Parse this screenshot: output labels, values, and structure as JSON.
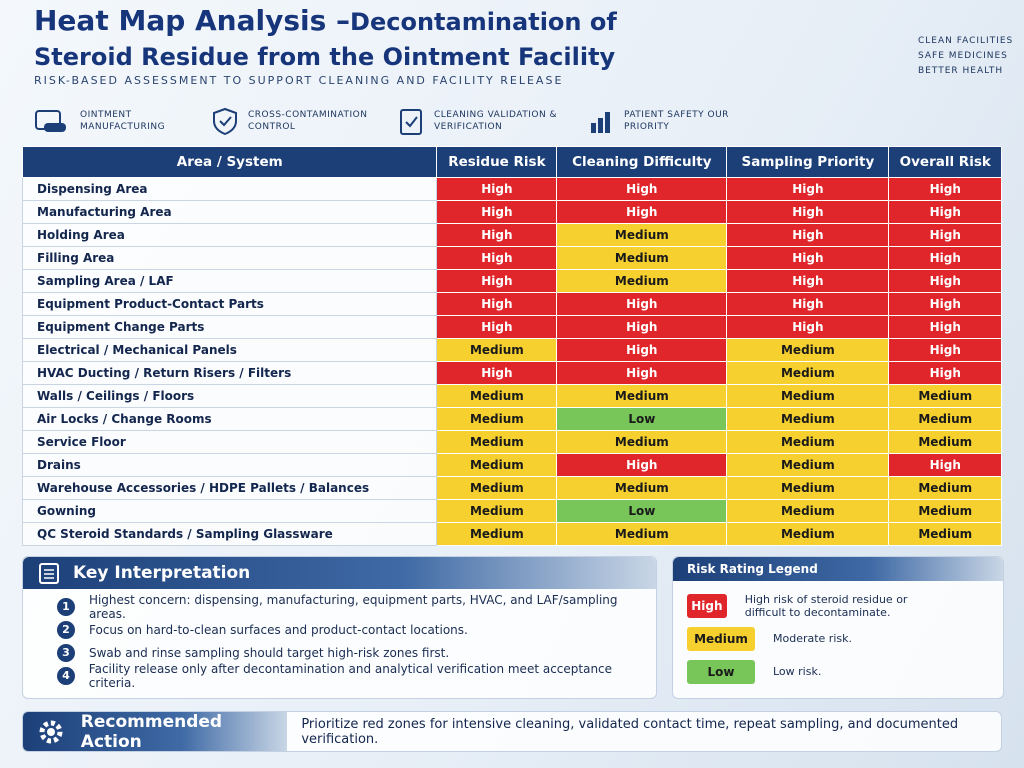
{
  "header": {
    "title_main": "Heat Map Analysis –",
    "title_rest": "Decontamination of Steroid Residue from the Ointment Facility",
    "subtitle": "RISK-BASED ASSESSMENT TO SUPPORT CLEANING AND FACILITY RELEASE",
    "tagline": [
      "CLEAN FACILITIES",
      "SAFE MEDICINES",
      "BETTER HEALTH"
    ],
    "badges": [
      "OINTMENT MANUFACTURING",
      "CROSS-CONTAMINATION CONTROL",
      "CLEANING VALIDATION & VERIFICATION",
      "PATIENT SAFETY OUR PRIORITY"
    ]
  },
  "table": {
    "columns": [
      "Area / System",
      "Residue Risk",
      "Cleaning Difficulty",
      "Sampling Priority",
      "Overall Risk"
    ],
    "rows": [
      [
        "Dispensing Area",
        "High",
        "High",
        "High",
        "High"
      ],
      [
        "Manufacturing Area",
        "High",
        "High",
        "High",
        "High"
      ],
      [
        "Holding Area",
        "High",
        "Medium",
        "High",
        "High"
      ],
      [
        "Filling Area",
        "High",
        "Medium",
        "High",
        "High"
      ],
      [
        "Sampling Area / LAF",
        "High",
        "Medium",
        "High",
        "High"
      ],
      [
        "Equipment Product-Contact Parts",
        "High",
        "High",
        "High",
        "High"
      ],
      [
        "Equipment Change Parts",
        "High",
        "High",
        "High",
        "High"
      ],
      [
        "Electrical / Mechanical Panels",
        "Medium",
        "High",
        "Medium",
        "High"
      ],
      [
        "HVAC Ducting / Return Risers / Filters",
        "High",
        "High",
        "Medium",
        "High"
      ],
      [
        "Walls / Ceilings / Floors",
        "Medium",
        "Medium",
        "Medium",
        "Medium"
      ],
      [
        "Air Locks / Change Rooms",
        "Medium",
        "Low",
        "Medium",
        "Medium"
      ],
      [
        "Service Floor",
        "Medium",
        "Medium",
        "Medium",
        "Medium"
      ],
      [
        "Drains",
        "Medium",
        "High",
        "Medium",
        "High"
      ],
      [
        "Warehouse Accessories / HDPE Pallets / Balances",
        "Medium",
        "Medium",
        "Medium",
        "Medium"
      ],
      [
        "Gowning",
        "Medium",
        "Low",
        "Medium",
        "Medium"
      ],
      [
        "QC Steroid Standards / Sampling Glassware",
        "Medium",
        "Medium",
        "Medium",
        "Medium"
      ]
    ]
  },
  "interpretation": {
    "title": "Key Interpretation",
    "items": [
      {
        "number": "1",
        "text": "Highest concern: dispensing, manufacturing, equipment parts, HVAC, and LAF/sampling areas."
      },
      {
        "number": "2",
        "text": "Focus on hard-to-clean surfaces and product-contact locations."
      },
      {
        "number": "3",
        "text": "Swab and rinse sampling should target high-risk zones first."
      },
      {
        "number": "4",
        "text": "Facility release only after decontamination and analytical verification meet acceptance criteria."
      }
    ]
  },
  "legend": {
    "title": "Risk Rating Legend",
    "items": [
      {
        "label": "High",
        "color": "#e0262b",
        "text_color": "#ffffff",
        "description": "High risk of steroid residue or difficult to decontaminate."
      },
      {
        "label": "Medium",
        "color": "#f6d02e",
        "text_color": "#1a1a1a",
        "description": "Moderate risk."
      },
      {
        "label": "Low",
        "color": "#78c659",
        "text_color": "#1a1a1a",
        "description": "Low risk."
      }
    ]
  },
  "action": {
    "title": "Recommended Action",
    "text": "Prioritize red zones for intensive cleaning, validated contact time, repeat sampling, and documented verification."
  }
}
